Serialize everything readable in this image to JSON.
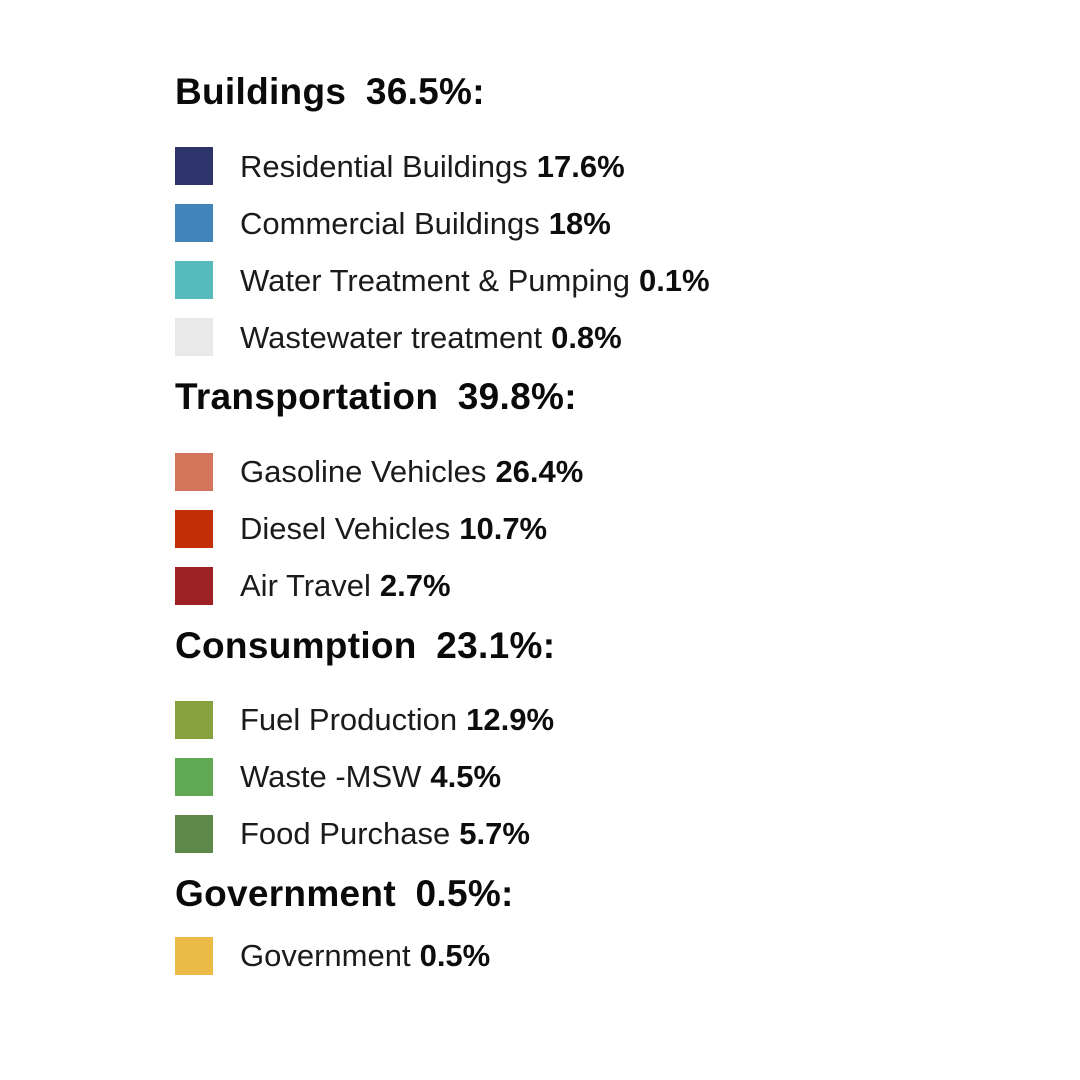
{
  "page": {
    "background": "#ffffff",
    "text_color": "#131313"
  },
  "chart_data": {
    "type": "pie",
    "title": "",
    "legend_position": "standalone-legend",
    "groups": [
      {
        "name": "Buildings",
        "value": 36.5
      },
      {
        "name": "Transportation",
        "value": 39.8
      },
      {
        "name": "Consumption",
        "value": 23.1
      },
      {
        "name": "Government",
        "value": 0.5
      }
    ],
    "categories": [
      "Residential Buildings",
      "Commercial Buildings",
      "Water Treatment & Pumping",
      "Wastewater treatment",
      "Gasoline Vehicles",
      "Diesel Vehicles",
      "Air Travel",
      "Fuel Production",
      "Waste -MSW",
      "Food Purchase",
      "Government"
    ],
    "values": [
      17.6,
      18,
      0.1,
      0.8,
      26.4,
      10.7,
      2.7,
      12.9,
      4.5,
      5.7,
      0.5
    ],
    "colors": [
      "#2F336B",
      "#4285BB",
      "#57BBBE",
      "#E9E9E9",
      "#D3755A",
      "#C22F04",
      "#9E2224",
      "#85A23C",
      "#60A854",
      "#5E8849",
      "#EBBA47"
    ]
  },
  "legend": {
    "sections": [
      {
        "heading": "Buildings 36.5%:",
        "items": [
          {
            "label": "Residential Buildings",
            "value": "17.6%",
            "color": "#2F336B"
          },
          {
            "label": "Commercial Buildings",
            "value": "18%",
            "color": "#4285BB"
          },
          {
            "label": "Water Treatment & Pumping",
            "value": "0.1%",
            "color": "#57BBBE"
          },
          {
            "label": "Wastewater treatment",
            "value": "0.8%",
            "color": "#E9E9E9"
          }
        ]
      },
      {
        "heading": "Transportation 39.8%:",
        "items": [
          {
            "label": "Gasoline Vehicles",
            "value": "26.4%",
            "color": "#D3755A"
          },
          {
            "label": "Diesel Vehicles",
            "value": "10.7%",
            "color": "#C22F04"
          },
          {
            "label": "Air Travel",
            "value": "2.7%",
            "color": "#9E2224"
          }
        ]
      },
      {
        "heading": "Consumption 23.1%:",
        "items": [
          {
            "label": "Fuel Production",
            "value": "12.9%",
            "color": "#85A23C"
          },
          {
            "label": "Waste -MSW",
            "value": "4.5%",
            "color": "#60A854"
          },
          {
            "label": "Food Purchase",
            "value": "5.7%",
            "color": "#5E8849"
          }
        ]
      },
      {
        "heading": "Government 0.5%:",
        "items": [
          {
            "label": "Government",
            "value": "0.5%",
            "color": "#EBBA47"
          }
        ]
      }
    ]
  }
}
